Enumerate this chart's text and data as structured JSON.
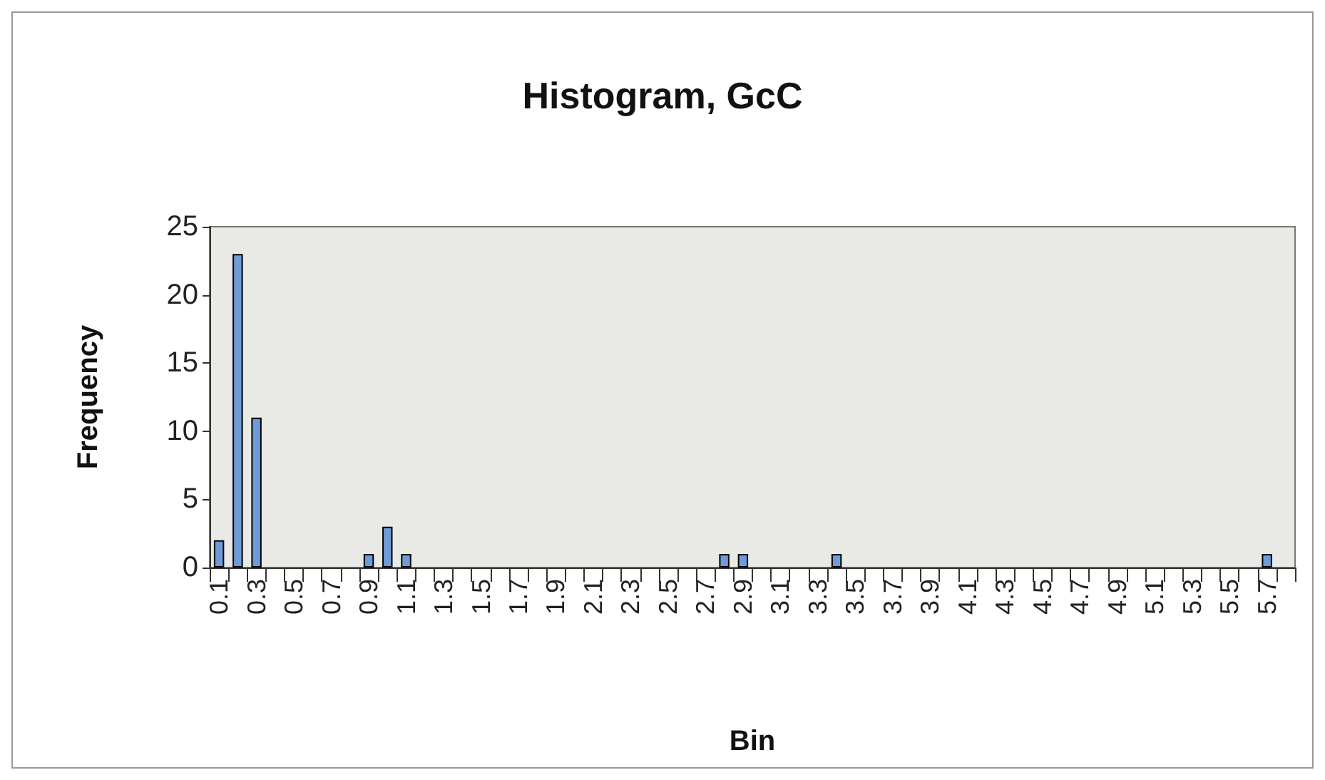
{
  "chart_data": {
    "type": "bar",
    "title": "Histogram, GcC",
    "xlabel": "Bin",
    "ylabel": "Frequency",
    "categories": [
      "0.1",
      null,
      "0.3",
      null,
      "0.5",
      null,
      "0.7",
      null,
      "0.9",
      null,
      "1.1",
      null,
      "1.3",
      null,
      "1.5",
      null,
      "1.7",
      null,
      "1.9",
      null,
      "2.1",
      null,
      "2.3",
      null,
      "2.5",
      null,
      "2.7",
      null,
      "2.9",
      null,
      "3.1",
      null,
      "3.3",
      null,
      "3.5",
      null,
      "3.7",
      null,
      "3.9",
      null,
      "4.1",
      null,
      "4.3",
      null,
      "4.5",
      null,
      "4.7",
      null,
      "4.9",
      null,
      "5.1",
      null,
      "5.3",
      null,
      "5.5",
      null,
      "5.7",
      null
    ],
    "values": [
      2,
      23,
      11,
      0,
      0,
      0,
      0,
      0,
      1,
      3,
      1,
      0,
      0,
      0,
      0,
      0,
      0,
      0,
      0,
      0,
      0,
      0,
      0,
      0,
      0,
      0,
      0,
      1,
      1,
      0,
      0,
      0,
      0,
      1,
      0,
      0,
      0,
      0,
      0,
      0,
      0,
      0,
      0,
      0,
      0,
      0,
      0,
      0,
      0,
      0,
      0,
      0,
      0,
      0,
      0,
      0,
      1,
      0
    ],
    "color": "#6f9bd8",
    "ylim": [
      0,
      25
    ],
    "yticks": [
      0,
      5,
      10,
      15,
      20,
      25
    ],
    "grid": false
  }
}
